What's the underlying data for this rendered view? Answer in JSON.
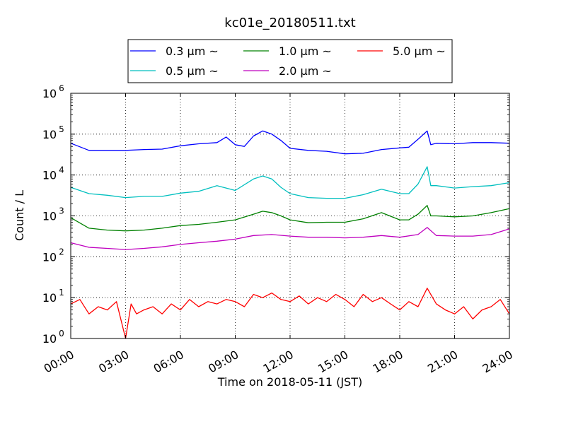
{
  "chart_data": {
    "type": "line",
    "title": "kc01e_20180511.txt",
    "xlabel": "Time on 2018-05-11 (JST)",
    "ylabel": "Count / L",
    "y_scale": "log",
    "ylim": [
      1,
      1000000
    ],
    "y_ticks": [
      {
        "value": 1,
        "base": "10",
        "exp": "0"
      },
      {
        "value": 10,
        "base": "10",
        "exp": "1"
      },
      {
        "value": 100,
        "base": "10",
        "exp": "2"
      },
      {
        "value": 1000,
        "base": "10",
        "exp": "3"
      },
      {
        "value": 10000,
        "base": "10",
        "exp": "4"
      },
      {
        "value": 100000,
        "base": "10",
        "exp": "5"
      },
      {
        "value": 1000000,
        "base": "10",
        "exp": "6"
      }
    ],
    "x_range_hours": [
      0,
      24
    ],
    "x_ticks": [
      {
        "hour": 0,
        "label": "00:00"
      },
      {
        "hour": 3,
        "label": "03:00"
      },
      {
        "hour": 6,
        "label": "06:00"
      },
      {
        "hour": 9,
        "label": "09:00"
      },
      {
        "hour": 12,
        "label": "12:00"
      },
      {
        "hour": 15,
        "label": "15:00"
      },
      {
        "hour": 18,
        "label": "18:00"
      },
      {
        "hour": 21,
        "label": "21:00"
      },
      {
        "hour": 24,
        "label": "24:00"
      }
    ],
    "grid": true,
    "legend_placement": "top-center",
    "series": [
      {
        "name": "0.3 µm ~",
        "color": "#0000ff",
        "x": [
          0,
          1,
          2,
          3,
          4,
          5,
          6,
          7,
          8,
          8.5,
          9,
          9.5,
          10,
          10.5,
          11,
          11.5,
          12,
          13,
          14,
          15,
          16,
          17,
          18,
          18.5,
          19,
          19.5,
          19.7,
          20,
          21,
          22,
          23,
          24
        ],
        "y": [
          60000,
          40000,
          40000,
          40000,
          42000,
          43000,
          52000,
          58000,
          62000,
          85000,
          55000,
          50000,
          90000,
          120000,
          100000,
          70000,
          45000,
          40000,
          38000,
          33000,
          34000,
          42000,
          46000,
          48000,
          75000,
          120000,
          55000,
          60000,
          58000,
          62000,
          62000,
          60000
        ]
      },
      {
        "name": "0.5 µm ~",
        "color": "#00bfbf",
        "x": [
          0,
          1,
          2,
          3,
          4,
          5,
          6,
          7,
          8,
          9,
          10,
          10.5,
          11,
          11.5,
          12,
          13,
          14,
          15,
          16,
          17,
          18,
          18.5,
          19,
          19.5,
          19.7,
          20,
          21,
          22,
          23,
          24
        ],
        "y": [
          5000,
          3500,
          3200,
          2800,
          3000,
          3000,
          3600,
          4000,
          5500,
          4200,
          8000,
          9500,
          8000,
          5000,
          3500,
          2800,
          2700,
          2700,
          3300,
          4500,
          3500,
          3500,
          6000,
          16000,
          5500,
          5500,
          4800,
          5200,
          5500,
          6500
        ]
      },
      {
        "name": "1.0 µm ~",
        "color": "#008000",
        "x": [
          0,
          1,
          2,
          3,
          4,
          5,
          6,
          7,
          8,
          9,
          10,
          10.5,
          11,
          11.5,
          12,
          13,
          14,
          15,
          16,
          17,
          18,
          18.5,
          19,
          19.5,
          19.7,
          20,
          21,
          22,
          23,
          24
        ],
        "y": [
          900,
          500,
          450,
          430,
          450,
          500,
          580,
          620,
          700,
          800,
          1100,
          1300,
          1200,
          1000,
          800,
          680,
          700,
          700,
          850,
          1200,
          800,
          800,
          1100,
          1800,
          1000,
          1000,
          950,
          1000,
          1200,
          1500
        ]
      },
      {
        "name": "2.0 µm ~",
        "color": "#bf00bf",
        "x": [
          0,
          1,
          2,
          3,
          4,
          5,
          6,
          7,
          8,
          9,
          10,
          11,
          12,
          13,
          14,
          15,
          16,
          17,
          18,
          19,
          19.5,
          20,
          21,
          22,
          23,
          24
        ],
        "y": [
          220,
          170,
          160,
          150,
          160,
          175,
          200,
          220,
          240,
          270,
          330,
          350,
          320,
          300,
          300,
          290,
          300,
          330,
          300,
          350,
          520,
          330,
          320,
          320,
          350,
          480
        ]
      },
      {
        "name": "5.0 µm ~",
        "color": "#ff0000",
        "x": [
          0,
          0.5,
          1,
          1.5,
          2,
          2.5,
          3,
          3.3,
          3.6,
          4,
          4.5,
          5,
          5.5,
          6,
          6.5,
          7,
          7.5,
          8,
          8.5,
          9,
          9.5,
          10,
          10.5,
          11,
          11.5,
          12,
          12.5,
          13,
          13.5,
          14,
          14.5,
          15,
          15.5,
          16,
          16.5,
          17,
          17.5,
          18,
          18.5,
          19,
          19.5,
          20,
          20.5,
          21,
          21.5,
          22,
          22.5,
          23,
          23.5,
          24
        ],
        "y": [
          7,
          9,
          4,
          6,
          5,
          8,
          1,
          7,
          4,
          5,
          6,
          4,
          7,
          5,
          9,
          6,
          8,
          7,
          9,
          8,
          6,
          12,
          10,
          13,
          9,
          8,
          11,
          7,
          10,
          8,
          12,
          9,
          6,
          12,
          8,
          10,
          7,
          5,
          8,
          6,
          17,
          7,
          5,
          4,
          6,
          3,
          5,
          6,
          9,
          4
        ]
      }
    ]
  }
}
